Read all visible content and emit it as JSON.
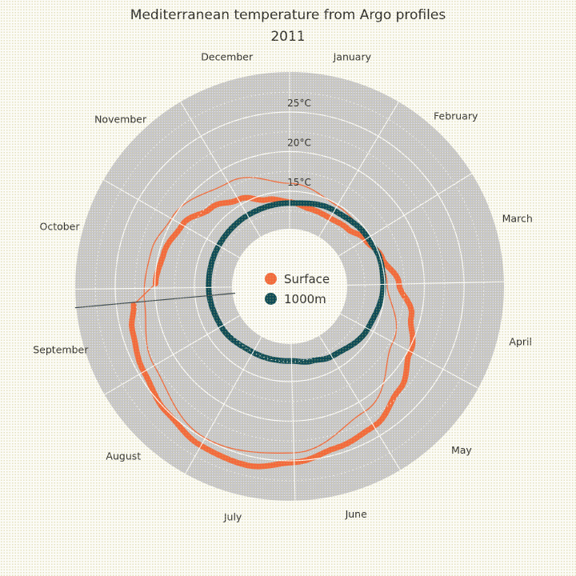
{
  "title": "Mediterranean temperature from Argo profiles",
  "subtitle": "2011",
  "legend": {
    "items": [
      {
        "label": "Surface",
        "color": "#F4693C"
      },
      {
        "label": "1000m",
        "color": "#0F4C58"
      }
    ]
  },
  "chart_data": {
    "type": "line",
    "projection": "polar",
    "title": "Mediterranean temperature from Argo profiles",
    "subtitle": "2011",
    "legend_position": "center",
    "angular_axis": {
      "direction": "clockwise",
      "zero_at": "top",
      "days_in_year": 365,
      "months": [
        "January",
        "February",
        "March",
        "April",
        "May",
        "June",
        "July",
        "August",
        "September",
        "October",
        "November",
        "December"
      ],
      "month_boundary_days": [
        0,
        31,
        59,
        90,
        120,
        151,
        181,
        212,
        243,
        273,
        304,
        334,
        365
      ]
    },
    "radial_axis": {
      "unit": "°C",
      "range": [
        10.3,
        30.1
      ],
      "ticks": [
        15,
        20,
        25
      ],
      "tick_labels": [
        "15°C",
        "20°C",
        "25°C"
      ],
      "minor_ticks": [
        12.5,
        17.5,
        22.5,
        27.5
      ]
    },
    "series": [
      {
        "name": "Surface (raw)",
        "color": "#F4693C",
        "width": 1.3,
        "closed": true,
        "points": [
          [
            0,
            16.0
          ],
          [
            31,
            14.8
          ],
          [
            59,
            14.4
          ],
          [
            90,
            15.3
          ],
          [
            120,
            17.8
          ],
          [
            151,
            21.4
          ],
          [
            181,
            24.0
          ],
          [
            212,
            24.9
          ],
          [
            243,
            22.8
          ],
          [
            267,
            21.4
          ],
          [
            289,
            21.0
          ],
          [
            304,
            20.2
          ],
          [
            334,
            18.2
          ],
          [
            365,
            16.0
          ]
        ]
      },
      {
        "name": "Surface",
        "color": "#F4693C",
        "width": 7,
        "closed": false,
        "gap_after_day": 267,
        "points_a": [
          [
            0,
            13.6
          ],
          [
            15,
            13.1
          ],
          [
            31,
            13.0
          ],
          [
            46,
            13.3
          ],
          [
            59,
            14.2
          ],
          [
            74,
            15.2
          ],
          [
            90,
            16.8
          ],
          [
            105,
            18.8
          ],
          [
            120,
            20.3
          ],
          [
            135,
            22.0
          ],
          [
            151,
            23.6
          ],
          [
            166,
            24.2
          ],
          [
            181,
            25.2
          ],
          [
            196,
            26.2
          ],
          [
            212,
            26.0
          ],
          [
            227,
            25.2
          ],
          [
            243,
            24.3
          ],
          [
            258,
            23.6
          ],
          [
            267,
            22.8
          ]
        ],
        "points_b": [
          [
            275,
            19.9
          ],
          [
            289,
            19.4
          ],
          [
            304,
            18.6
          ],
          [
            319,
            17.0
          ],
          [
            334,
            15.7
          ],
          [
            350,
            14.3
          ],
          [
            365,
            13.65
          ]
        ]
      },
      {
        "name": "1000m",
        "color": "#0F4C58",
        "width": 7,
        "closed": true,
        "points": [
          [
            0,
            13.5
          ],
          [
            31,
            14.1
          ],
          [
            59,
            14.6
          ],
          [
            74,
            14.9
          ],
          [
            90,
            14.8
          ],
          [
            120,
            14.2
          ],
          [
            151,
            13.3
          ],
          [
            166,
            12.8
          ],
          [
            181,
            12.4
          ],
          [
            212,
            12.5
          ],
          [
            243,
            13.0
          ],
          [
            273,
            13.2
          ],
          [
            304,
            13.3
          ],
          [
            334,
            13.4
          ],
          [
            365,
            13.5
          ]
        ]
      }
    ],
    "data_gap_connector": {
      "series": "Surface",
      "from": [
        267,
        22.8
      ],
      "to": [
        275,
        19.9
      ],
      "color": "#F4693C",
      "width": 1.3
    },
    "artifact_spike": {
      "color": "#3C4A52",
      "width": 1.2,
      "from": {
        "day": 268,
        "temp": 30.2
      },
      "to": {
        "day": 266.5,
        "temp": 9.9
      }
    }
  },
  "layout_colors": {
    "plot_disc": "#C7C7CB",
    "grid": "#FFFFFF",
    "text": "#2D2D2D",
    "page_bg": "#FBFBF6"
  }
}
